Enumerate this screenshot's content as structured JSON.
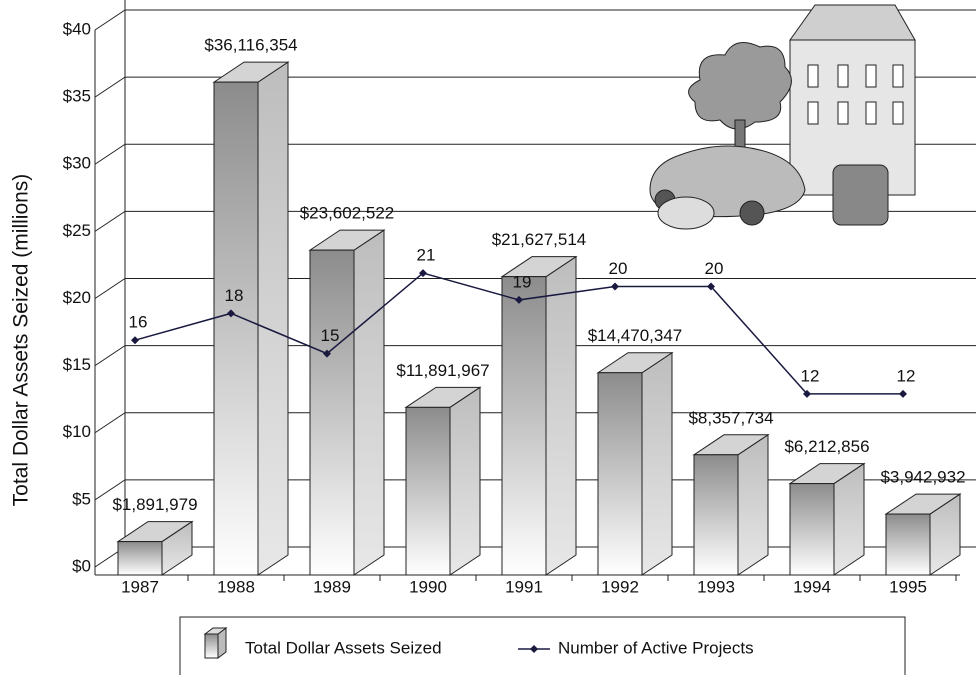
{
  "chart_data": {
    "type": "bar",
    "ylabel": "Total Dollar Assets Seized (millions)",
    "categories": [
      "1987",
      "1988",
      "1989",
      "1990",
      "1991",
      "1992",
      "1993",
      "1994",
      "1995"
    ],
    "ylim": [
      0,
      40
    ],
    "yticks": [
      {
        "value": 0,
        "label": "$0"
      },
      {
        "value": 5,
        "label": "$5"
      },
      {
        "value": 10,
        "label": "$10"
      },
      {
        "value": 15,
        "label": "$15"
      },
      {
        "value": 20,
        "label": "$20"
      },
      {
        "value": 25,
        "label": "$25"
      },
      {
        "value": 30,
        "label": "$30"
      },
      {
        "value": 35,
        "label": "$35"
      },
      {
        "value": 40,
        "label": "$40"
      }
    ],
    "grid": true,
    "series": [
      {
        "name": "Total Dollar Assets Seized",
        "type": "bar",
        "color": "#9a9a9a",
        "values": [
          1.891979,
          36.116354,
          23.602522,
          11.891967,
          21.627514,
          14.470347,
          8.357734,
          6.212856,
          3.942932
        ],
        "value_labels": [
          "$1,891,979",
          "$36,116,354",
          "$23,602,522",
          "$11,891,967",
          "$21,627,514",
          "$14,470,347",
          "$8,357,734",
          "$6,212,856",
          "$3,942,932"
        ]
      },
      {
        "name": "Number of Active Projects",
        "type": "line",
        "color": "#1a1a40",
        "values": [
          16,
          18,
          15,
          21,
          19,
          20,
          20,
          12,
          12
        ]
      }
    ],
    "legend": "bottom"
  }
}
